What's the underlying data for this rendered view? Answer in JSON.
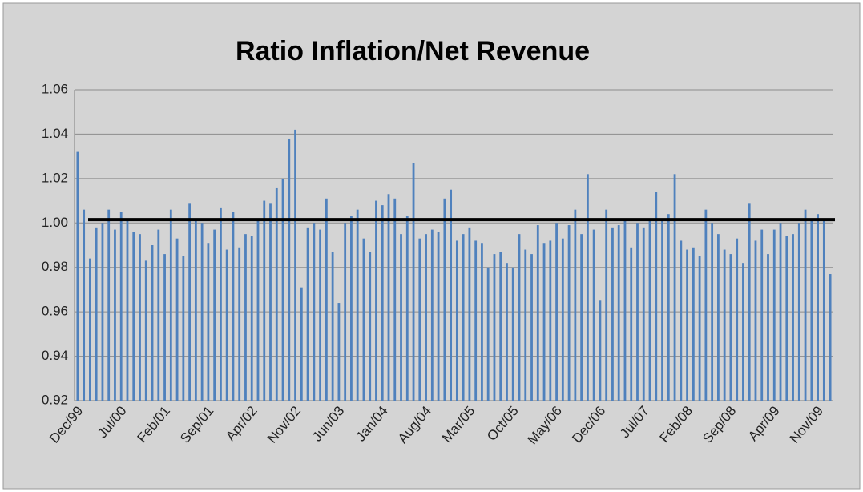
{
  "chart_data": {
    "type": "bar",
    "title": "Ratio Inflation/Net Revenue",
    "categories": [
      "Dec/99",
      null,
      null,
      null,
      null,
      null,
      null,
      "Jul/00",
      null,
      null,
      null,
      null,
      null,
      null,
      "Feb/01",
      null,
      null,
      null,
      null,
      null,
      null,
      "Sep/01",
      null,
      null,
      null,
      null,
      null,
      null,
      "Apr/02",
      null,
      null,
      null,
      null,
      null,
      null,
      "Nov/02",
      null,
      null,
      null,
      null,
      null,
      null,
      "Jun/03",
      null,
      null,
      null,
      null,
      null,
      null,
      "Jan/04",
      null,
      null,
      null,
      null,
      null,
      null,
      "Aug/04",
      null,
      null,
      null,
      null,
      null,
      null,
      "Mar/05",
      null,
      null,
      null,
      null,
      null,
      null,
      "Oct/05",
      null,
      null,
      null,
      null,
      null,
      null,
      "May/06",
      null,
      null,
      null,
      null,
      null,
      null,
      "Dec/06",
      null,
      null,
      null,
      null,
      null,
      null,
      "Jul/07",
      null,
      null,
      null,
      null,
      null,
      null,
      "Feb/08",
      null,
      null,
      null,
      null,
      null,
      null,
      "Sep/08",
      null,
      null,
      null,
      null,
      null,
      null,
      "Apr/09",
      null,
      null,
      null,
      null,
      null,
      null,
      "Nov/09",
      null,
      null
    ],
    "values": [
      1.032,
      1.006,
      0.984,
      0.998,
      1.0,
      1.006,
      0.997,
      1.005,
      1.001,
      0.996,
      0.995,
      0.983,
      0.99,
      0.997,
      0.986,
      1.006,
      0.993,
      0.985,
      1.009,
      1.001,
      1.0,
      0.991,
      0.997,
      1.007,
      0.988,
      1.005,
      0.989,
      0.995,
      0.994,
      1.001,
      1.01,
      1.009,
      1.016,
      1.02,
      1.038,
      1.042,
      0.971,
      0.998,
      1.0,
      0.997,
      1.011,
      0.987,
      0.964,
      1.0,
      1.003,
      1.006,
      0.993,
      0.987,
      1.01,
      1.008,
      1.013,
      1.011,
      0.995,
      1.003,
      1.027,
      0.993,
      0.995,
      0.997,
      0.996,
      1.011,
      1.015,
      0.992,
      0.995,
      0.998,
      0.992,
      0.991,
      0.98,
      0.986,
      0.987,
      0.982,
      0.98,
      0.995,
      0.988,
      0.986,
      0.999,
      0.991,
      0.992,
      1.0,
      0.993,
      0.999,
      1.006,
      0.995,
      1.022,
      0.997,
      0.965,
      1.006,
      0.998,
      0.999,
      1.001,
      0.989,
      1.0,
      0.998,
      1.001,
      1.014,
      1.001,
      1.004,
      1.022,
      0.992,
      0.988,
      0.989,
      0.985,
      1.006,
      1.0,
      0.995,
      0.988,
      0.986,
      0.993,
      0.982,
      1.009,
      0.992,
      0.997,
      0.986,
      0.997,
      1.0,
      0.994,
      0.995,
      1.0,
      1.006,
      1.001,
      1.004,
      1.001,
      0.977
    ],
    "color": "#4f81bd",
    "ylim": [
      0.92,
      1.06
    ],
    "yticks": [
      {
        "value": 0.92,
        "label": "0.92"
      },
      {
        "value": 0.94,
        "label": "0.94"
      },
      {
        "value": 0.96,
        "label": "0.96"
      },
      {
        "value": 0.98,
        "label": "0.98"
      },
      {
        "value": 1.0,
        "label": "1.00"
      },
      {
        "value": 1.02,
        "label": "1.02"
      },
      {
        "value": 1.04,
        "label": "1.04"
      },
      {
        "value": 1.06,
        "label": "1.06"
      }
    ],
    "grid": true,
    "reference_line": 1.0015
  }
}
